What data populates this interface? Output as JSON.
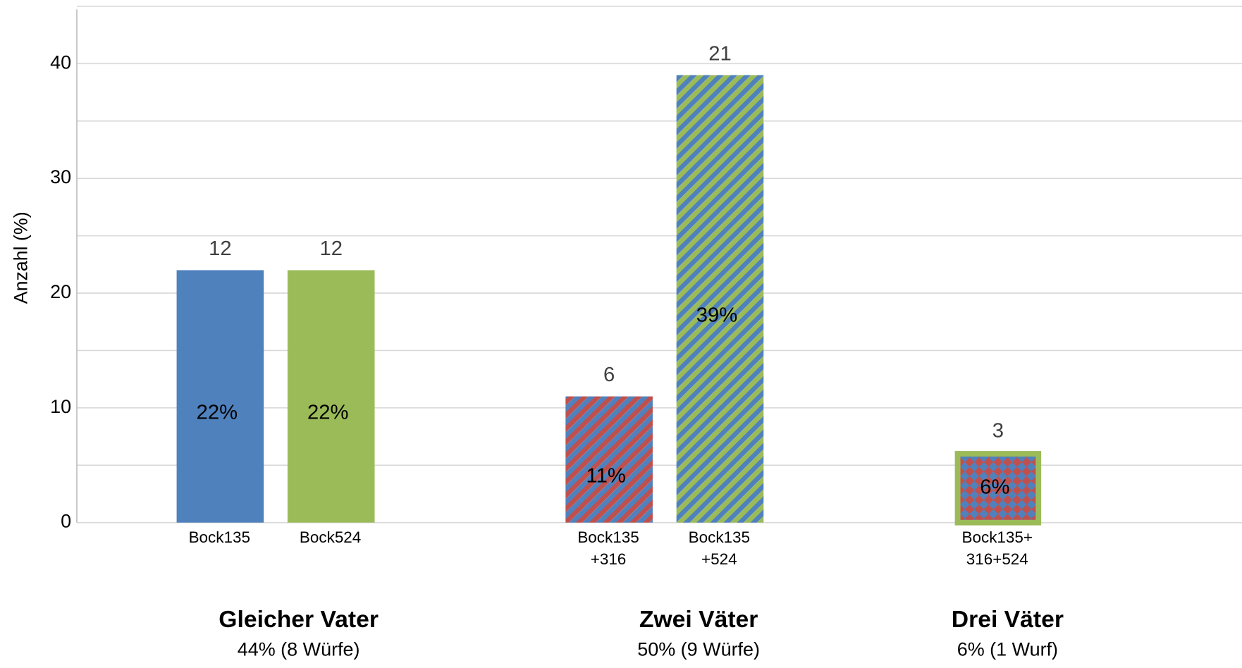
{
  "chart_data": {
    "type": "bar",
    "ylabel": "Anzahl (%)",
    "ylim": [
      0,
      45
    ],
    "yticks": [
      0,
      10,
      20,
      30,
      40
    ],
    "minor_yticks": [
      5,
      15,
      25,
      35,
      45
    ],
    "grid": true,
    "categories": [
      [
        "Bock135"
      ],
      [
        "Bock524"
      ],
      [
        "Bock135",
        "+316"
      ],
      [
        "Bock135",
        "+524"
      ],
      [
        "Bock135+",
        "316+524"
      ]
    ],
    "values": [
      22,
      22,
      11,
      39,
      6
    ],
    "value_labels": [
      "22%",
      "22%",
      "11%",
      "39%",
      "6%"
    ],
    "counts": [
      12,
      12,
      6,
      21,
      3
    ],
    "patterns": [
      "solid",
      "solid",
      "stripes",
      "stripes",
      "checker"
    ],
    "colors": [
      [
        "#4f81bd"
      ],
      [
        "#9bbb59"
      ],
      [
        "#c0504d",
        "#4f81bd"
      ],
      [
        "#4f81bd",
        "#9bbb59"
      ],
      [
        "#c0504d",
        "#4f81bd",
        "#9bbb59"
      ]
    ],
    "groups": [
      {
        "title": "Gleicher Vater",
        "subtitle": "44% (8 Würfe)",
        "members": [
          0,
          1
        ]
      },
      {
        "title": "Zwei Väter",
        "subtitle": "50% (9 Würfe)",
        "members": [
          2,
          3
        ]
      },
      {
        "title": "Drei Väter",
        "subtitle": "6% (1 Wurf)",
        "members": [
          4
        ]
      }
    ]
  }
}
